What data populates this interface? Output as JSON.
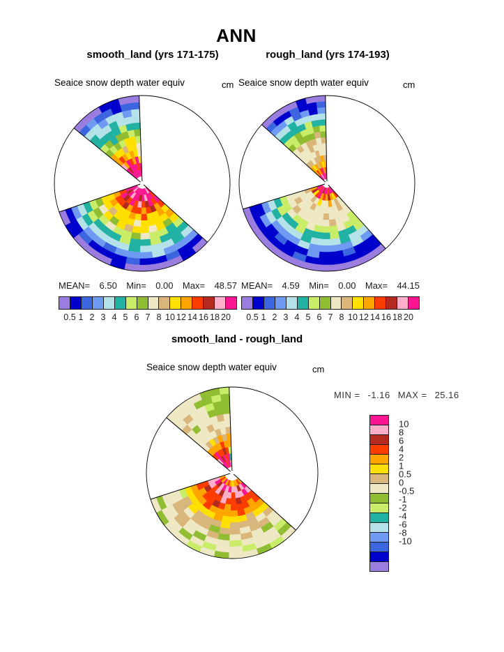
{
  "title": "ANN",
  "palette": [
    "#9b7de0",
    "#0000cd",
    "#3c66e0",
    "#6f9af2",
    "#b5e2e9",
    "#22b2a3",
    "#c9ec69",
    "#91bd33",
    "#efe8c5",
    "#d9b67c",
    "#ffe000",
    "#ffa500",
    "#fc3d00",
    "#b42a20",
    "#ffafc9",
    "#fa1691"
  ],
  "stats_labels": {
    "mean": "MEAN=",
    "min": "Min=",
    "max": "Max=",
    "min_caps": "MIN =",
    "max_caps": "MAX ="
  },
  "chart_data": [
    {
      "type": "heatmap",
      "projection": "polar-sector-map",
      "subtitle": "smooth_land (yrs 171-175)",
      "field": "Seaice snow depth water equiv",
      "units": "cm",
      "stats": {
        "mean": "6.50",
        "min": "0.00",
        "max": "48.57"
      },
      "levels": [
        "0.5",
        "1",
        "2",
        "3",
        "4",
        "5",
        "6",
        "7",
        "8",
        "10",
        "12",
        "14",
        "16",
        "18",
        "20"
      ],
      "encoding": "ring cell values are palette/level-bin indices, 0=lowest bin, 15=highest bin, -1=no data",
      "wedges": [
        {
          "start": 92,
          "end": 141,
          "inner": 0.08,
          "rings": [
            [
              15,
              15,
              15,
              15,
              15,
              15,
              15
            ],
            [
              15,
              12,
              15,
              15,
              15,
              13,
              15
            ],
            [
              10,
              15,
              11,
              12,
              15,
              11,
              14
            ],
            [
              8,
              10,
              11,
              10,
              11,
              12,
              11
            ],
            [
              8,
              10,
              10,
              9,
              10,
              10,
              11
            ],
            [
              6,
              10,
              10,
              6,
              7,
              6,
              7
            ],
            [
              7,
              6,
              7,
              7,
              5,
              7,
              6
            ],
            [
              5,
              5,
              6,
              5,
              5,
              5,
              5
            ],
            [
              4,
              4,
              4,
              5,
              4,
              4,
              5
            ],
            [
              4,
              3,
              4,
              4,
              3,
              4,
              4
            ],
            [
              2,
              2,
              1,
              2,
              2,
              3,
              2
            ],
            [
              0,
              0,
              1,
              1,
              0,
              0,
              0
            ]
          ]
        },
        {
          "start": 199,
          "end": 318,
          "inner": 0.06,
          "rings": [
            [
              15,
              15,
              14,
              15,
              15,
              15,
              15,
              15,
              15,
              15,
              14,
              15
            ],
            [
              15,
              13,
              15,
              14,
              15,
              15,
              13,
              15,
              14,
              15,
              15,
              12
            ],
            [
              12,
              15,
              13,
              12,
              15,
              12,
              14,
              12,
              13,
              15,
              12,
              15
            ],
            [
              11,
              12,
              12,
              13,
              11,
              12,
              12,
              11,
              12,
              13,
              11,
              12
            ],
            [
              10,
              11,
              10,
              10,
              10,
              11,
              10,
              12,
              10,
              10,
              11,
              10
            ],
            [
              10,
              10,
              9,
              10,
              10,
              10,
              8,
              10,
              10,
              10,
              10,
              11
            ],
            [
              7,
              8,
              10,
              7,
              10,
              9,
              10,
              10,
              8,
              10,
              7,
              10
            ],
            [
              6,
              7,
              6,
              8,
              6,
              6,
              7,
              8,
              6,
              6,
              5,
              6
            ],
            [
              5,
              6,
              5,
              5,
              5,
              6,
              5,
              5,
              6,
              5,
              5,
              5
            ],
            [
              4,
              5,
              4,
              4,
              4,
              4,
              5,
              4,
              4,
              4,
              5,
              4
            ],
            [
              3,
              4,
              3,
              3,
              2,
              3,
              3,
              3,
              4,
              3,
              3,
              3
            ],
            [
              1,
              1,
              2,
              1,
              1,
              1,
              2,
              1,
              1,
              2,
              1,
              1
            ],
            [
              0,
              1,
              0,
              0,
              0,
              1,
              0,
              0,
              0,
              0,
              1,
              0
            ]
          ]
        }
      ]
    },
    {
      "type": "heatmap",
      "projection": "polar-sector-map",
      "subtitle": "rough_land (yrs 174-193)",
      "field": "Seaice snow depth water equiv",
      "units": "cm",
      "stats": {
        "mean": "4.59",
        "min": "0.00",
        "max": "44.15"
      },
      "levels": [
        "0.5",
        "1",
        "2",
        "3",
        "4",
        "5",
        "6",
        "7",
        "8",
        "10",
        "12",
        "14",
        "16",
        "18",
        "20"
      ],
      "encoding": "ring cell values are palette/level-bin indices, 0=lowest bin, 15=highest bin, -1=no data",
      "wedges": [
        {
          "start": 91,
          "end": 138,
          "inner": 0.05,
          "rings": [
            [
              15,
              15,
              15,
              15,
              14,
              15,
              15
            ],
            [
              12,
              11,
              15,
              12,
              11,
              12,
              11
            ],
            [
              11,
              10,
              11,
              9,
              11,
              10,
              11
            ],
            [
              9,
              11,
              9,
              9,
              8,
              9,
              9
            ],
            [
              8,
              8,
              9,
              8,
              8,
              8,
              8
            ],
            [
              8,
              8,
              8,
              9,
              8,
              8,
              8
            ],
            [
              9,
              8,
              9,
              9,
              8,
              9,
              8
            ],
            [
              7,
              9,
              7,
              7,
              7,
              6,
              7
            ],
            [
              6,
              7,
              6,
              6,
              7,
              6,
              6
            ],
            [
              5,
              5,
              6,
              5,
              5,
              5,
              5
            ],
            [
              4,
              4,
              4,
              4,
              5,
              4,
              4
            ],
            [
              3,
              1,
              3,
              2,
              4,
              3,
              3
            ],
            [
              2,
              1,
              1,
              2,
              1,
              1,
              2
            ],
            [
              0,
              0,
              1,
              0,
              0,
              0,
              0
            ]
          ]
        },
        {
          "start": 197,
          "end": 312,
          "inner": 0.05,
          "rings": [
            [
              15,
              15,
              12,
              15,
              15,
              13,
              15,
              15,
              12,
              15,
              15,
              15
            ],
            [
              11,
              13,
              10,
              12,
              15,
              11,
              12,
              11,
              13,
              11,
              10,
              12
            ],
            [
              9,
              8,
              8,
              9,
              8,
              10,
              8,
              8,
              11,
              8,
              9,
              8
            ],
            [
              8,
              8,
              8,
              8,
              9,
              8,
              8,
              8,
              8,
              8,
              9,
              8
            ],
            [
              8,
              9,
              8,
              8,
              8,
              8,
              8,
              9,
              8,
              8,
              8,
              8
            ],
            [
              8,
              8,
              9,
              8,
              8,
              8,
              8,
              8,
              9,
              8,
              8,
              6
            ],
            [
              6,
              6,
              8,
              6,
              6,
              8,
              6,
              6,
              6,
              8,
              6,
              6
            ],
            [
              5,
              6,
              5,
              5,
              6,
              5,
              5,
              5,
              6,
              5,
              5,
              6
            ],
            [
              4,
              5,
              4,
              4,
              4,
              5,
              4,
              4,
              4,
              5,
              4,
              4
            ],
            [
              3,
              4,
              3,
              3,
              3,
              4,
              3,
              3,
              3,
              3,
              4,
              3
            ],
            [
              1,
              3,
              1,
              2,
              1,
              1,
              3,
              1,
              1,
              2,
              1,
              1
            ],
            [
              1,
              1,
              1,
              1,
              1,
              2,
              1,
              1,
              1,
              1,
              1,
              1
            ],
            [
              0,
              0,
              0,
              0,
              0,
              0,
              0,
              0,
              0,
              0,
              0,
              0
            ]
          ]
        }
      ]
    },
    {
      "type": "heatmap",
      "projection": "polar-sector-map",
      "subtitle": "smooth_land - rough_land",
      "field": "Seaice snow depth water equiv",
      "units": "cm",
      "stats": {
        "min": "-1.16",
        "max": "25.16"
      },
      "levels": [
        "10",
        "8",
        "6",
        "4",
        "2",
        "1",
        "0.5",
        "0",
        "-0.5",
        "-1",
        "-2",
        "-4",
        "-6",
        "-8",
        "-10"
      ],
      "encoding": "ring cell values are palette/level-bin indices, 0=most negative bin, 15=most positive bin, -1=no data",
      "wedges": [
        {
          "start": 92,
          "end": 140,
          "inner": 0.07,
          "rings": [
            [
              6,
              15,
              15,
              12,
              15,
              15,
              15
            ],
            [
              5,
              15,
              12,
              15,
              13,
              15,
              14
            ],
            [
              6,
              12,
              13,
              12,
              12,
              15,
              12
            ],
            [
              11,
              11,
              12,
              11,
              11,
              11,
              11
            ],
            [
              11,
              9,
              11,
              9,
              10,
              9,
              8
            ],
            [
              9,
              8,
              9,
              8,
              8,
              8,
              8
            ],
            [
              8,
              8,
              8,
              9,
              8,
              8,
              8
            ],
            [
              8,
              9,
              8,
              8,
              8,
              7,
              8
            ],
            [
              7,
              7,
              7,
              8,
              8,
              8,
              9
            ],
            [
              7,
              7,
              6,
              8,
              8,
              9,
              8
            ],
            [
              7,
              6,
              7,
              7,
              8,
              8,
              8
            ],
            [
              6,
              7,
              7,
              8,
              8,
              8,
              8
            ]
          ]
        },
        {
          "start": 198,
          "end": 318,
          "inner": 0.09,
          "rings": [
            [
              11,
              12,
              11,
              15,
              11,
              12,
              11,
              10,
              11,
              11,
              12,
              11
            ],
            [
              14,
              15,
              13,
              14,
              15,
              14,
              15,
              14,
              14,
              13,
              14,
              15
            ],
            [
              14,
              14,
              12,
              14,
              13,
              14,
              14,
              12,
              14,
              14,
              15,
              14
            ],
            [
              12,
              13,
              12,
              12,
              12,
              14,
              12,
              12,
              13,
              12,
              12,
              12
            ],
            [
              12,
              11,
              12,
              12,
              13,
              12,
              11,
              12,
              12,
              12,
              11,
              12
            ],
            [
              11,
              11,
              11,
              12,
              11,
              11,
              11,
              11,
              12,
              11,
              11,
              11
            ],
            [
              10,
              10,
              10,
              10,
              10,
              11,
              10,
              10,
              10,
              9,
              10,
              10
            ],
            [
              6,
              9,
              10,
              9,
              9,
              9,
              10,
              9,
              9,
              9,
              8,
              9
            ],
            [
              8,
              9,
              8,
              9,
              9,
              7,
              9,
              9,
              8,
              9,
              9,
              8
            ],
            [
              8,
              9,
              9,
              8,
              8,
              9,
              7,
              8,
              9,
              8,
              7,
              8
            ],
            [
              8,
              8,
              9,
              8,
              7,
              8,
              8,
              6,
              8,
              8,
              8,
              6
            ],
            [
              7,
              8,
              8,
              7,
              8,
              6,
              8,
              8,
              6,
              8,
              8,
              7
            ],
            [
              8,
              7,
              8,
              8,
              6,
              8,
              7,
              8,
              8,
              7,
              6,
              8
            ]
          ]
        }
      ]
    }
  ]
}
